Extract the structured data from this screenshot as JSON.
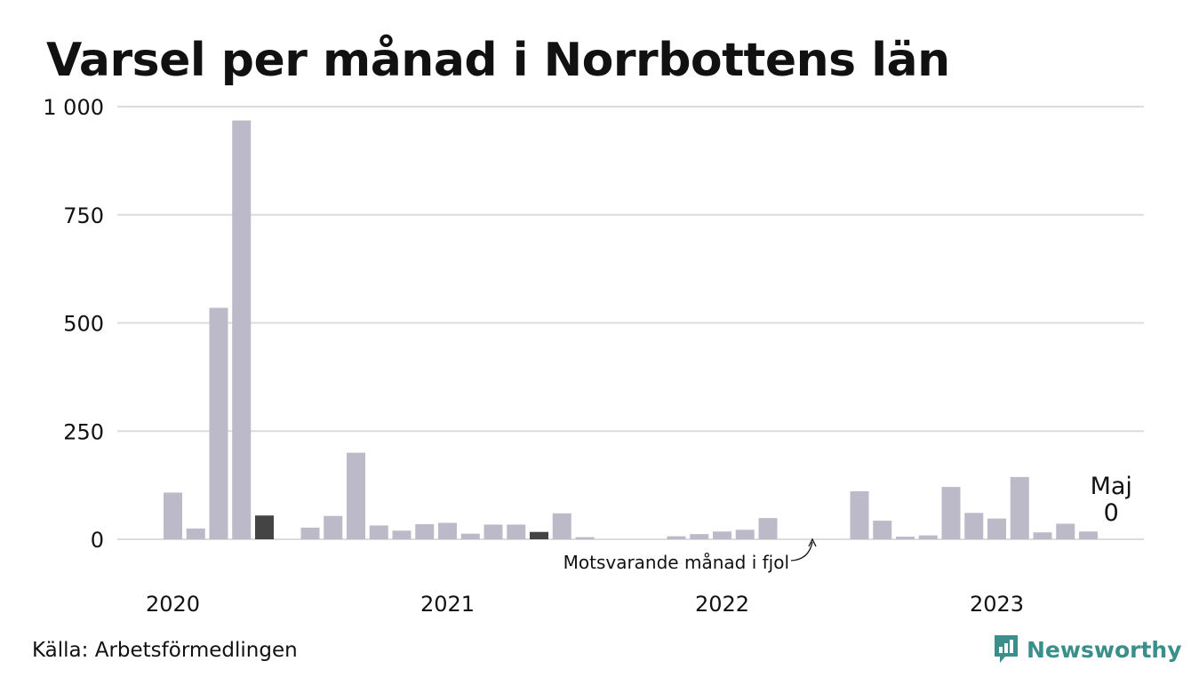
{
  "title": "Varsel per månad i Norrbottens län",
  "source": "Källa: Arbetsförmedlingen",
  "brand": {
    "name": "Newsworthy",
    "icon": "newsworthy-logo-icon",
    "color": "#3a8f8a"
  },
  "chart_data": {
    "type": "bar",
    "title": "Varsel per månad i Norrbottens län",
    "ylim": [
      0,
      1000
    ],
    "yticks": [
      0,
      250,
      500,
      750,
      1000
    ],
    "ytick_labels": [
      "0",
      "250",
      "500",
      "750",
      "1 000"
    ],
    "xtick_labels": [
      "2020",
      "2021",
      "2022",
      "2023"
    ],
    "grid": true,
    "colors": {
      "default": "#bcb9c8",
      "highlight": "#444444",
      "grid": "#dcdcdc"
    },
    "values": [
      108,
      25,
      535,
      968,
      55,
      0,
      27,
      54,
      200,
      32,
      20,
      35,
      38,
      13,
      34,
      34,
      17,
      60,
      5,
      0,
      0,
      0,
      7,
      12,
      18,
      22,
      49,
      0,
      0,
      0,
      111,
      43,
      6,
      9,
      121,
      61,
      48,
      144,
      16,
      36,
      18,
      0
    ],
    "highlight_indices": [
      4,
      16,
      28
    ],
    "annotations": {
      "prior_year_label": "Motsvarande månad i fjol",
      "last_month_name": "Maj",
      "last_month_value": "0"
    }
  }
}
